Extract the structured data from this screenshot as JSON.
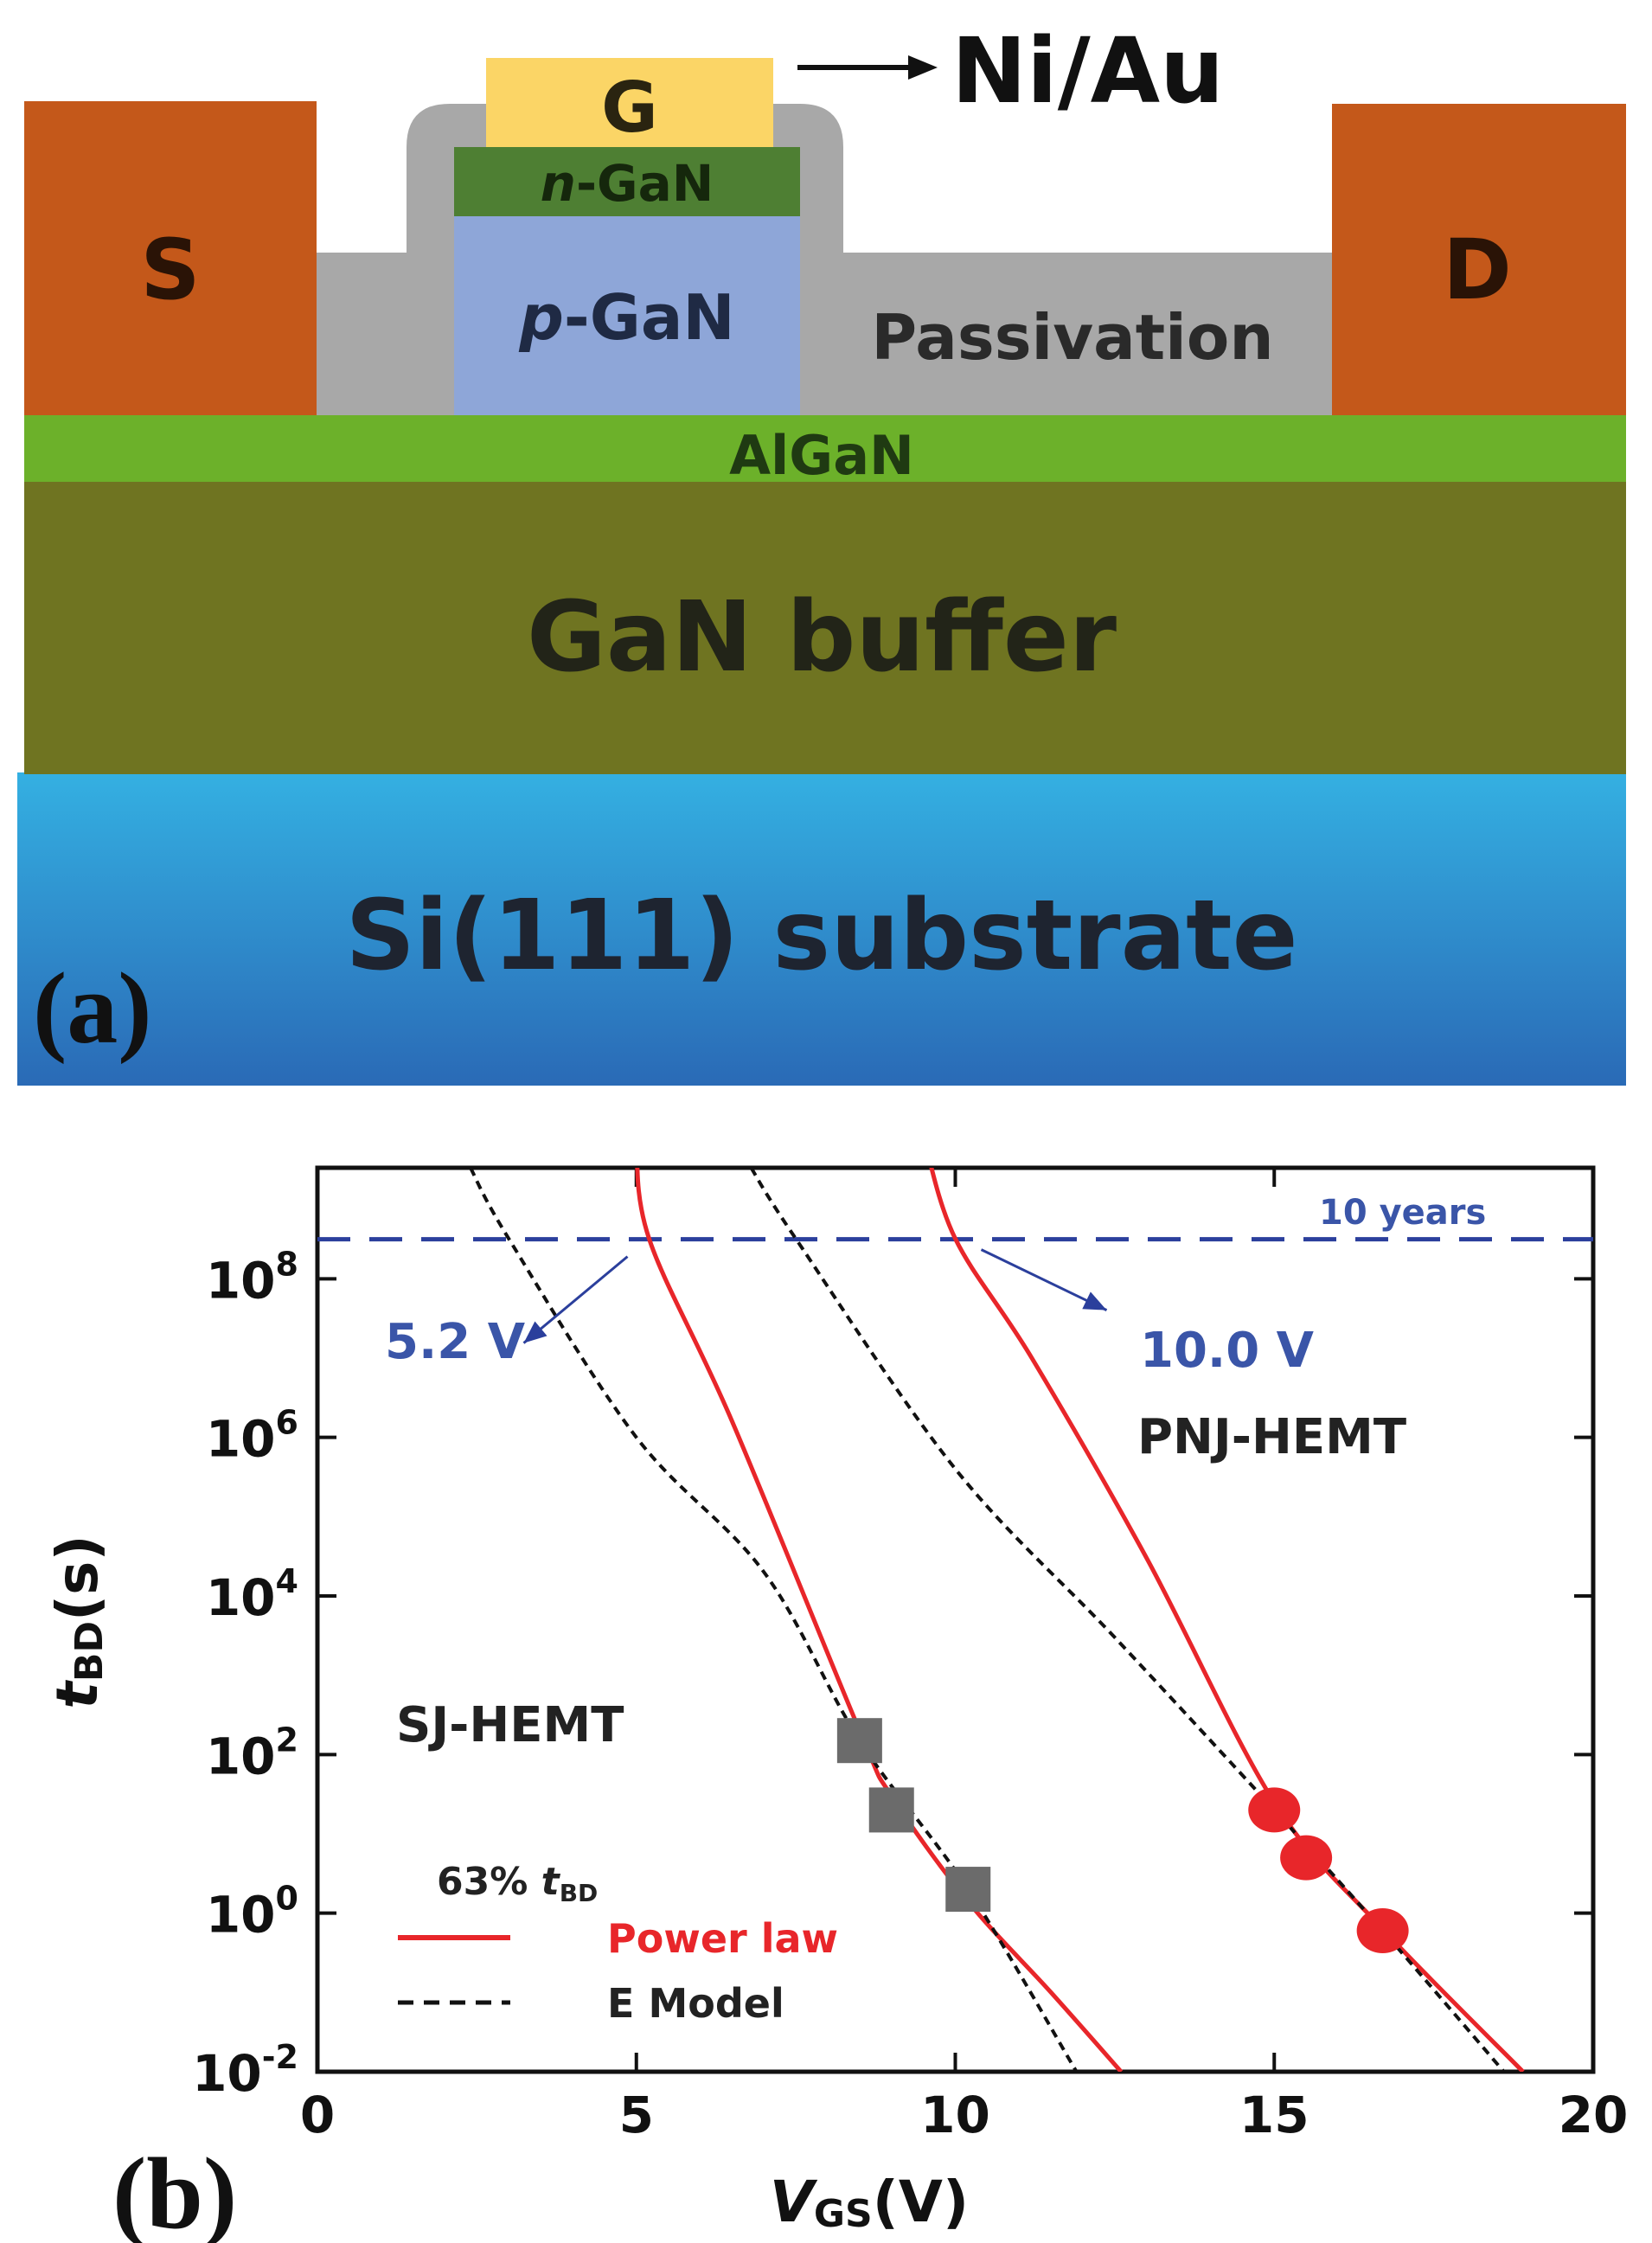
{
  "panel_a": {
    "label": "(a)",
    "source": "S",
    "drain": "D",
    "gate": "G",
    "gate_metal": "Ni/Au",
    "n_layer": "n-GaN",
    "p_layer": "p-GaN",
    "passivation": "Passivation",
    "barrier": "AlGaN",
    "buffer": "GaN buffer",
    "substrate": "Si(111) substrate",
    "colors": {
      "contact": "#c4581a",
      "gate": "#fbd566",
      "n_gan": "#4e7f33",
      "p_gan": "#8ea6d8",
      "passivation": "#a8a8a8",
      "algan": "#6cb12a",
      "buffer": "#6f7421",
      "substrate_top": "#34b0e2",
      "substrate_bottom": "#2a6ab6"
    }
  },
  "panel_b": {
    "label": "(b)",
    "xlabel": {
      "base": "V",
      "sub": "GS",
      "rest": "(V)"
    },
    "ylabel": {
      "base": "t",
      "sub": "BD",
      "rest": "(s)"
    },
    "ten_years_label": "10 years",
    "annotation_sj": "5.2 V",
    "annotation_pnj": "10.0 V",
    "device_pnj": "PNJ-HEMT",
    "device_sj": "SJ-HEMT",
    "legend_title": {
      "prefix": "63% ",
      "base": "t",
      "sub": "BD"
    },
    "legend_power": "Power law",
    "legend_emodel": "E Model",
    "colors": {
      "power_law": "#e8262a",
      "e_model": "#111111",
      "guide": "#2b3f9c",
      "annot": "#3a55a8"
    }
  },
  "chart_data": {
    "type": "scatter",
    "x_axis": {
      "label": "VGS(V)",
      "range": [
        0,
        20
      ],
      "ticks": [
        0,
        5,
        10,
        15,
        20
      ]
    },
    "y_axis": {
      "label": "tBD(s)",
      "scale": "log",
      "range_log10": [
        -2,
        9.4
      ],
      "tick_exponents": [
        -2,
        0,
        2,
        4,
        6,
        8
      ]
    },
    "ten_years_s": 315360000,
    "series": [
      {
        "name": "SJ-HEMT",
        "marker": "square",
        "color": "#6b6b6b",
        "points": [
          {
            "x": 8.5,
            "y": 150
          },
          {
            "x": 9.0,
            "y": 20
          },
          {
            "x": 10.2,
            "y": 2
          }
        ]
      },
      {
        "name": "PNJ-HEMT",
        "marker": "circle",
        "color": "#e8262a",
        "points": [
          {
            "x": 15.0,
            "y": 20
          },
          {
            "x": 15.5,
            "y": 5
          },
          {
            "x": 16.7,
            "y": 0.6
          }
        ]
      },
      {
        "name": "Power law",
        "style": "solid",
        "color": "#e8262a",
        "curves": [
          [
            {
              "x": 5.0,
              "y": 6300000000.0
            },
            {
              "x": 5.2,
              "y": 320000000.0
            },
            {
              "x": 6.5,
              "y": 1600000.0
            },
            {
              "x": 8.5,
              "y": 200
            },
            {
              "x": 9.0,
              "y": 30
            },
            {
              "x": 10.2,
              "y": 1.4
            },
            {
              "x": 11.5,
              "y": 0.1
            },
            {
              "x": 12.6,
              "y": 0.01
            }
          ],
          [
            {
              "x": 9.5,
              "y": 6300000000.0
            },
            {
              "x": 10.0,
              "y": 320000000.0
            },
            {
              "x": 11.2,
              "y": 10000000.0
            },
            {
              "x": 13.0,
              "y": 30000.0
            },
            {
              "x": 15.0,
              "y": 25
            },
            {
              "x": 16.7,
              "y": 0.63
            },
            {
              "x": 18.9,
              "y": 0.01
            }
          ]
        ]
      },
      {
        "name": "E Model",
        "style": "dashed",
        "color": "#111111",
        "curves": [
          [
            {
              "x": 2.4,
              "y": 2500000000.0
            },
            {
              "x": 3.0,
              "y": 320000000.0
            },
            {
              "x": 5.0,
              "y": 1000000.0
            },
            {
              "x": 7.0,
              "y": 20000.0
            },
            {
              "x": 8.5,
              "y": 150
            },
            {
              "x": 10.2,
              "y": 2
            },
            {
              "x": 11.9,
              "y": 0.01
            }
          ],
          [
            {
              "x": 6.8,
              "y": 2500000000.0
            },
            {
              "x": 7.5,
              "y": 320000000.0
            },
            {
              "x": 10.0,
              "y": 400000.0
            },
            {
              "x": 12.5,
              "y": 3000.0
            },
            {
              "x": 15.0,
              "y": 20
            },
            {
              "x": 16.7,
              "y": 0.6
            },
            {
              "x": 18.6,
              "y": 0.01
            }
          ]
        ]
      }
    ],
    "annotations": [
      {
        "text": "5.2 V",
        "x": 5.2,
        "y": 315360000
      },
      {
        "text": "10.0 V",
        "x": 10.0,
        "y": 315360000
      }
    ]
  }
}
